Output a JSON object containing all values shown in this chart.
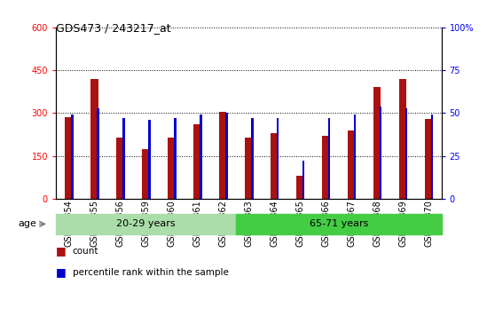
{
  "title": "GDS473 / 243217_at",
  "categories": [
    "GSM10354",
    "GSM10355",
    "GSM10356",
    "GSM10359",
    "GSM10360",
    "GSM10361",
    "GSM10362",
    "GSM10363",
    "GSM10364",
    "GSM10365",
    "GSM10366",
    "GSM10367",
    "GSM10368",
    "GSM10369",
    "GSM10370"
  ],
  "count_values": [
    285,
    420,
    215,
    175,
    215,
    260,
    305,
    215,
    230,
    80,
    220,
    240,
    390,
    420,
    280
  ],
  "percentile_values": [
    49,
    53,
    47,
    46,
    47,
    49,
    50,
    47,
    47,
    22,
    47,
    49,
    54,
    53,
    49
  ],
  "group1_label": "20-29 years",
  "group2_label": "65-71 years",
  "group1_count": 7,
  "group2_count": 8,
  "ylim_left": [
    0,
    600
  ],
  "ylim_right": [
    0,
    100
  ],
  "yticks_left": [
    0,
    150,
    300,
    450,
    600
  ],
  "yticks_right": [
    0,
    25,
    50,
    75,
    100
  ],
  "bar_color_count": "#AA1111",
  "bar_color_pct": "#0000CC",
  "group_bg_color1": "#AADDAA",
  "group_bg_color2": "#44CC44",
  "legend_count_label": "count",
  "legend_pct_label": "percentile rank within the sample",
  "count_bar_width": 0.28,
  "pct_bar_width": 0.08,
  "grid_color": "black",
  "grid_linestyle": "dotted",
  "title_fontsize": 9,
  "tick_fontsize": 7,
  "label_fontsize": 7
}
